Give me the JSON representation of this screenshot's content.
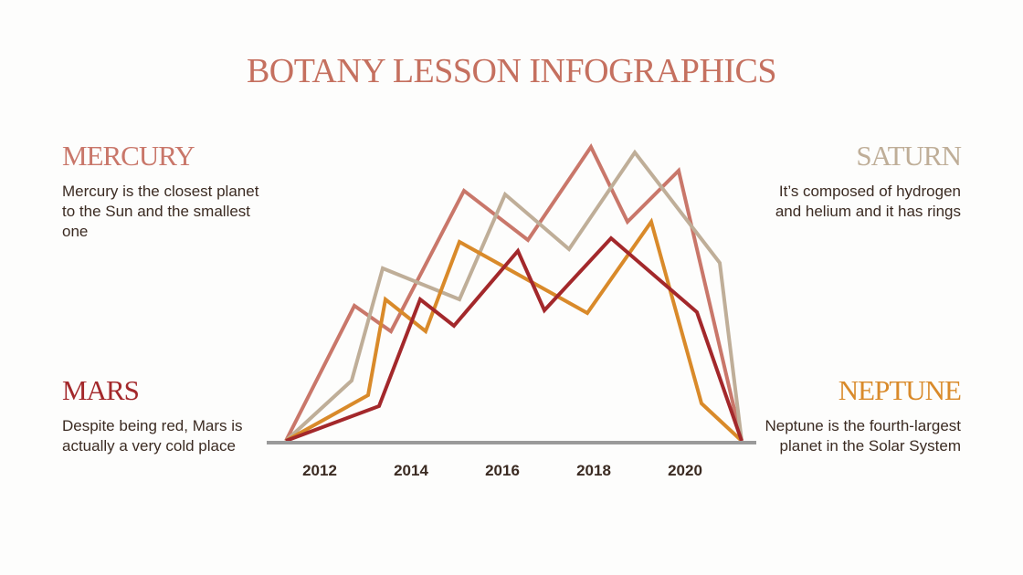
{
  "title": "BOTANY LESSON INFOGRAPHICS",
  "colors": {
    "title": "#c5705f",
    "mercury": "#c9776a",
    "saturn": "#bfae98",
    "mars": "#a3282b",
    "neptune": "#d98a2a",
    "axis": "#9a9a9a",
    "body_text": "#3b2b22"
  },
  "blocks": {
    "mercury": {
      "heading": "MERCURY",
      "text": "Mercury is the closest planet to the Sun and the smallest one"
    },
    "saturn": {
      "heading": "SATURN",
      "text": "It’s composed of hydrogen and helium and it has rings"
    },
    "mars": {
      "heading": "MARS",
      "text": "Despite being red, Mars is actually a very cold place"
    },
    "neptune": {
      "heading": "NEPTUNE",
      "text": "Neptune is the fourth-largest planet in the Solar System"
    }
  },
  "chart_data": {
    "type": "line",
    "title": "",
    "xlabel": "",
    "ylabel": "",
    "x_ticks": [
      "2012",
      "2014",
      "2016",
      "2018",
      "2020"
    ],
    "xlim": [
      2011.26,
      2021.24
    ],
    "ylim": [
      0,
      330
    ],
    "grid": false,
    "legend": "none (series identified by colored headings: Mercury, Saturn, Mars, Neptune)",
    "series": [
      {
        "name": "Mercury",
        "color": "#c9776a",
        "points": [
          [
            2011.26,
            0
          ],
          [
            2012.76,
            148
          ],
          [
            2013.56,
            120
          ],
          [
            2015.16,
            274
          ],
          [
            2016.56,
            220
          ],
          [
            2017.94,
            322
          ],
          [
            2018.74,
            240
          ],
          [
            2019.86,
            296
          ],
          [
            2021.24,
            0
          ]
        ]
      },
      {
        "name": "Saturn",
        "color": "#bfae98",
        "points": [
          [
            2011.26,
            0
          ],
          [
            2012.7,
            66
          ],
          [
            2013.38,
            189
          ],
          [
            2015.06,
            155
          ],
          [
            2016.06,
            270
          ],
          [
            2017.46,
            210
          ],
          [
            2018.9,
            316
          ],
          [
            2020.76,
            195
          ],
          [
            2021.24,
            0
          ]
        ]
      },
      {
        "name": "Neptune",
        "color": "#d98a2a",
        "points": [
          [
            2011.26,
            0
          ],
          [
            2013.06,
            50
          ],
          [
            2013.44,
            155
          ],
          [
            2014.32,
            120
          ],
          [
            2015.06,
            218
          ],
          [
            2017.86,
            140
          ],
          [
            2019.26,
            240
          ],
          [
            2020.36,
            41
          ],
          [
            2021.24,
            0
          ]
        ]
      },
      {
        "name": "Mars",
        "color": "#a3282b",
        "points": [
          [
            2011.26,
            0
          ],
          [
            2013.3,
            38
          ],
          [
            2014.2,
            155
          ],
          [
            2014.94,
            126
          ],
          [
            2016.34,
            208
          ],
          [
            2016.92,
            143
          ],
          [
            2018.38,
            222
          ],
          [
            2020.26,
            141
          ],
          [
            2021.24,
            0
          ]
        ]
      }
    ]
  }
}
